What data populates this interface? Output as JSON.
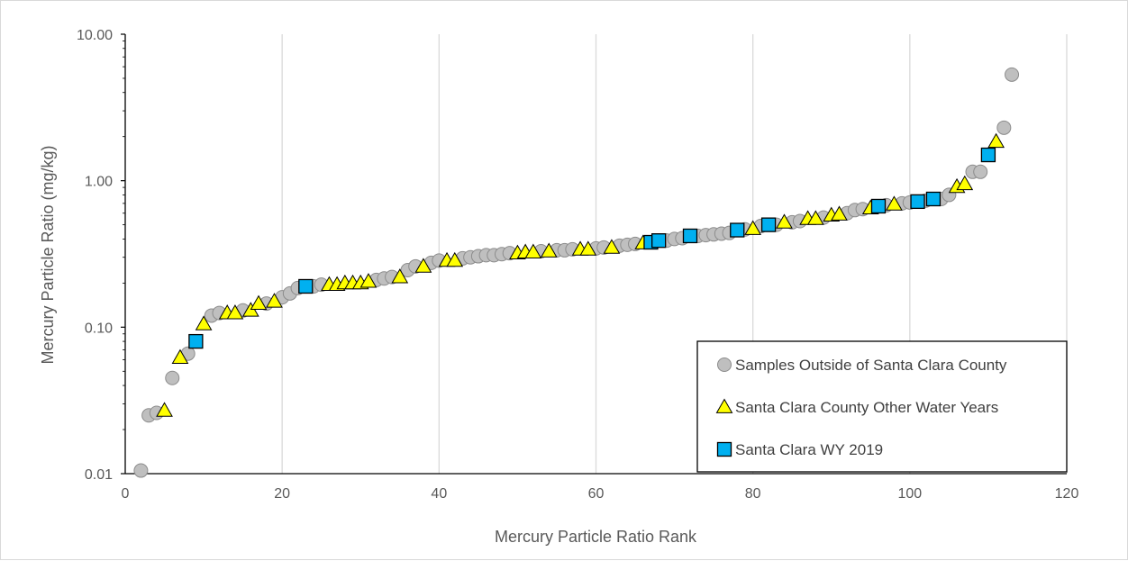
{
  "chart_data": {
    "type": "scatter",
    "title": "",
    "xlabel": "Mercury Particle Ratio Rank",
    "ylabel": "Mercury Particle Ratio (mg/kg)",
    "xlim": [
      0,
      120
    ],
    "ylim": [
      0.01,
      10
    ],
    "yscale": "log",
    "x_ticks": [
      0,
      20,
      40,
      60,
      80,
      100,
      120
    ],
    "x_tick_labels": [
      "0",
      "20",
      "40",
      "60",
      "80",
      "100",
      "120"
    ],
    "y_ticks": [
      0.01,
      0.1,
      1,
      10
    ],
    "y_tick_labels": [
      "0.01",
      "0.10",
      "1.00",
      "10.00"
    ],
    "grid": "vertical major gridlines",
    "legend_position": "bottom-right",
    "series": [
      {
        "name": "Samples Outside of Santa Clara County",
        "marker": "circle",
        "color": "#bfbfbf",
        "points": [
          [
            2,
            0.0105
          ],
          [
            3,
            0.025
          ],
          [
            4,
            0.026
          ],
          [
            6,
            0.045
          ],
          [
            8,
            0.066
          ],
          [
            11,
            0.12
          ],
          [
            12,
            0.125
          ],
          [
            15,
            0.13
          ],
          [
            18,
            0.145
          ],
          [
            20,
            0.16
          ],
          [
            21,
            0.17
          ],
          [
            22,
            0.185
          ],
          [
            24,
            0.19
          ],
          [
            25,
            0.195
          ],
          [
            32,
            0.21
          ],
          [
            33,
            0.215
          ],
          [
            34,
            0.22
          ],
          [
            36,
            0.245
          ],
          [
            37,
            0.26
          ],
          [
            39,
            0.275
          ],
          [
            40,
            0.285
          ],
          [
            43,
            0.295
          ],
          [
            44,
            0.3
          ],
          [
            45,
            0.305
          ],
          [
            46,
            0.31
          ],
          [
            47,
            0.31
          ],
          [
            48,
            0.315
          ],
          [
            49,
            0.32
          ],
          [
            53,
            0.33
          ],
          [
            55,
            0.335
          ],
          [
            56,
            0.335
          ],
          [
            57,
            0.34
          ],
          [
            60,
            0.345
          ],
          [
            61,
            0.35
          ],
          [
            63,
            0.36
          ],
          [
            64,
            0.365
          ],
          [
            65,
            0.37
          ],
          [
            69,
            0.39
          ],
          [
            70,
            0.4
          ],
          [
            71,
            0.405
          ],
          [
            73,
            0.42
          ],
          [
            74,
            0.425
          ],
          [
            75,
            0.43
          ],
          [
            76,
            0.435
          ],
          [
            77,
            0.44
          ],
          [
            79,
            0.465
          ],
          [
            81,
            0.49
          ],
          [
            83,
            0.5
          ],
          [
            85,
            0.52
          ],
          [
            86,
            0.53
          ],
          [
            89,
            0.56
          ],
          [
            92,
            0.6
          ],
          [
            93,
            0.63
          ],
          [
            94,
            0.64
          ],
          [
            97,
            0.68
          ],
          [
            99,
            0.7
          ],
          [
            100,
            0.71
          ],
          [
            102,
            0.73
          ],
          [
            104,
            0.75
          ],
          [
            105,
            0.8
          ],
          [
            108,
            1.15
          ],
          [
            109,
            1.15
          ],
          [
            112,
            2.3
          ],
          [
            113,
            5.3
          ]
        ]
      },
      {
        "name": "Santa Clara County Other Water Years",
        "marker": "triangle",
        "color": "#ffff00",
        "points": [
          [
            5,
            0.027
          ],
          [
            7,
            0.062
          ],
          [
            10,
            0.105
          ],
          [
            13,
            0.125
          ],
          [
            14,
            0.125
          ],
          [
            16,
            0.13
          ],
          [
            17,
            0.145
          ],
          [
            19,
            0.15
          ],
          [
            26,
            0.195
          ],
          [
            27,
            0.195
          ],
          [
            28,
            0.2
          ],
          [
            29,
            0.2
          ],
          [
            30,
            0.2
          ],
          [
            31,
            0.205
          ],
          [
            35,
            0.22
          ],
          [
            38,
            0.26
          ],
          [
            41,
            0.285
          ],
          [
            42,
            0.285
          ],
          [
            50,
            0.32
          ],
          [
            51,
            0.325
          ],
          [
            52,
            0.325
          ],
          [
            54,
            0.33
          ],
          [
            58,
            0.34
          ],
          [
            59,
            0.34
          ],
          [
            62,
            0.35
          ],
          [
            66,
            0.375
          ],
          [
            80,
            0.47
          ],
          [
            84,
            0.52
          ],
          [
            87,
            0.55
          ],
          [
            88,
            0.55
          ],
          [
            90,
            0.58
          ],
          [
            91,
            0.59
          ],
          [
            95,
            0.65
          ],
          [
            98,
            0.69
          ],
          [
            106,
            0.91
          ],
          [
            107,
            0.95
          ],
          [
            111,
            1.85
          ]
        ]
      },
      {
        "name": "Santa Clara WY 2019",
        "marker": "square",
        "color": "#00b0f0",
        "points": [
          [
            9,
            0.08
          ],
          [
            23,
            0.19
          ],
          [
            67,
            0.38
          ],
          [
            68,
            0.39
          ],
          [
            72,
            0.42
          ],
          [
            78,
            0.46
          ],
          [
            82,
            0.5
          ],
          [
            96,
            0.67
          ],
          [
            101,
            0.72
          ],
          [
            103,
            0.75
          ],
          [
            110,
            1.5
          ]
        ]
      }
    ]
  }
}
